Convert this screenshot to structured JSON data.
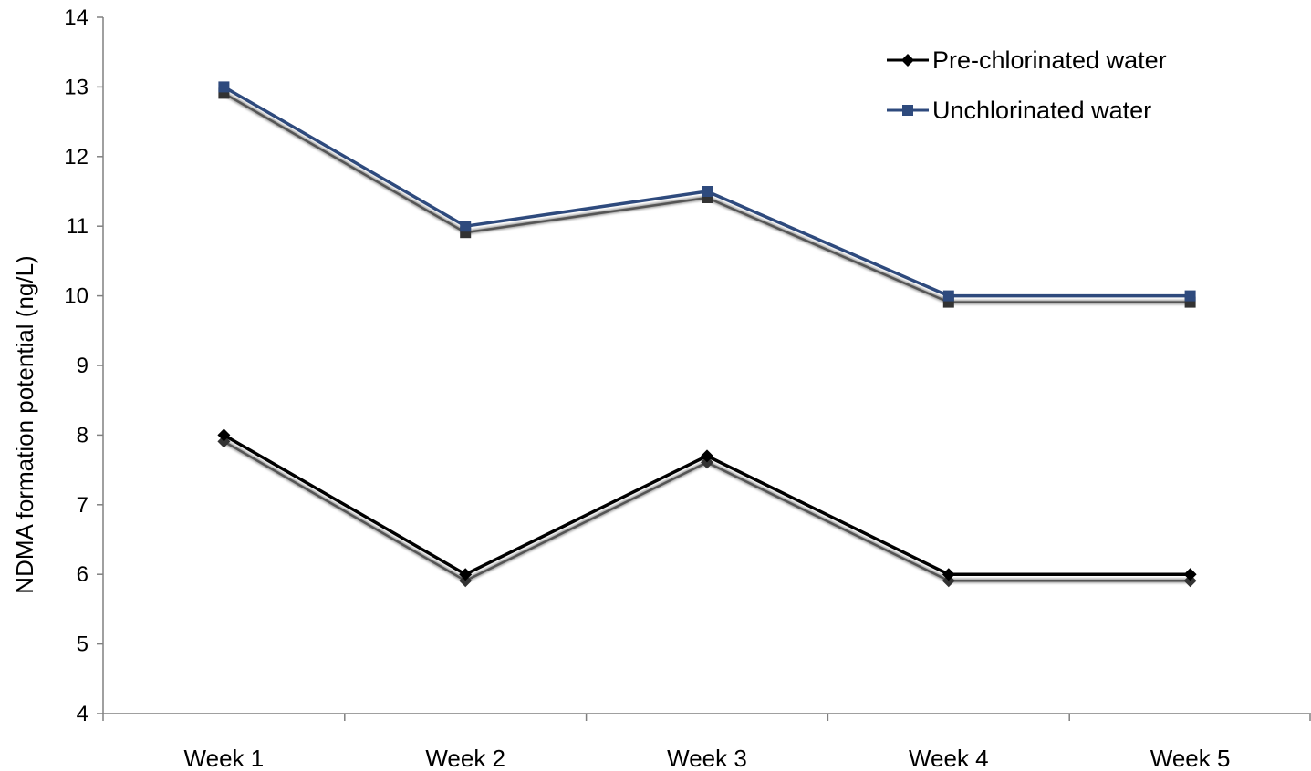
{
  "chart_data": {
    "type": "line",
    "title": "",
    "xlabel": "",
    "ylabel": "NDMA formation potential (ng/L)",
    "categories": [
      "Week 1",
      "Week 2",
      "Week 3",
      "Week 4",
      "Week 5"
    ],
    "ylim": [
      4,
      14
    ],
    "yticks": [
      "4",
      "5",
      "6",
      "7",
      "8",
      "9",
      "10",
      "11",
      "12",
      "13",
      "14"
    ],
    "grid": false,
    "legend_position": "top-right",
    "series": [
      {
        "name": "Pre-chlorinated water",
        "values": [
          8,
          6,
          7.7,
          6,
          6
        ],
        "color": "#000000",
        "marker": "diamond"
      },
      {
        "name": "Unchlorinated water",
        "values": [
          13,
          11,
          11.5,
          10,
          10
        ],
        "color": "#2E4A7D",
        "marker": "square"
      }
    ]
  }
}
